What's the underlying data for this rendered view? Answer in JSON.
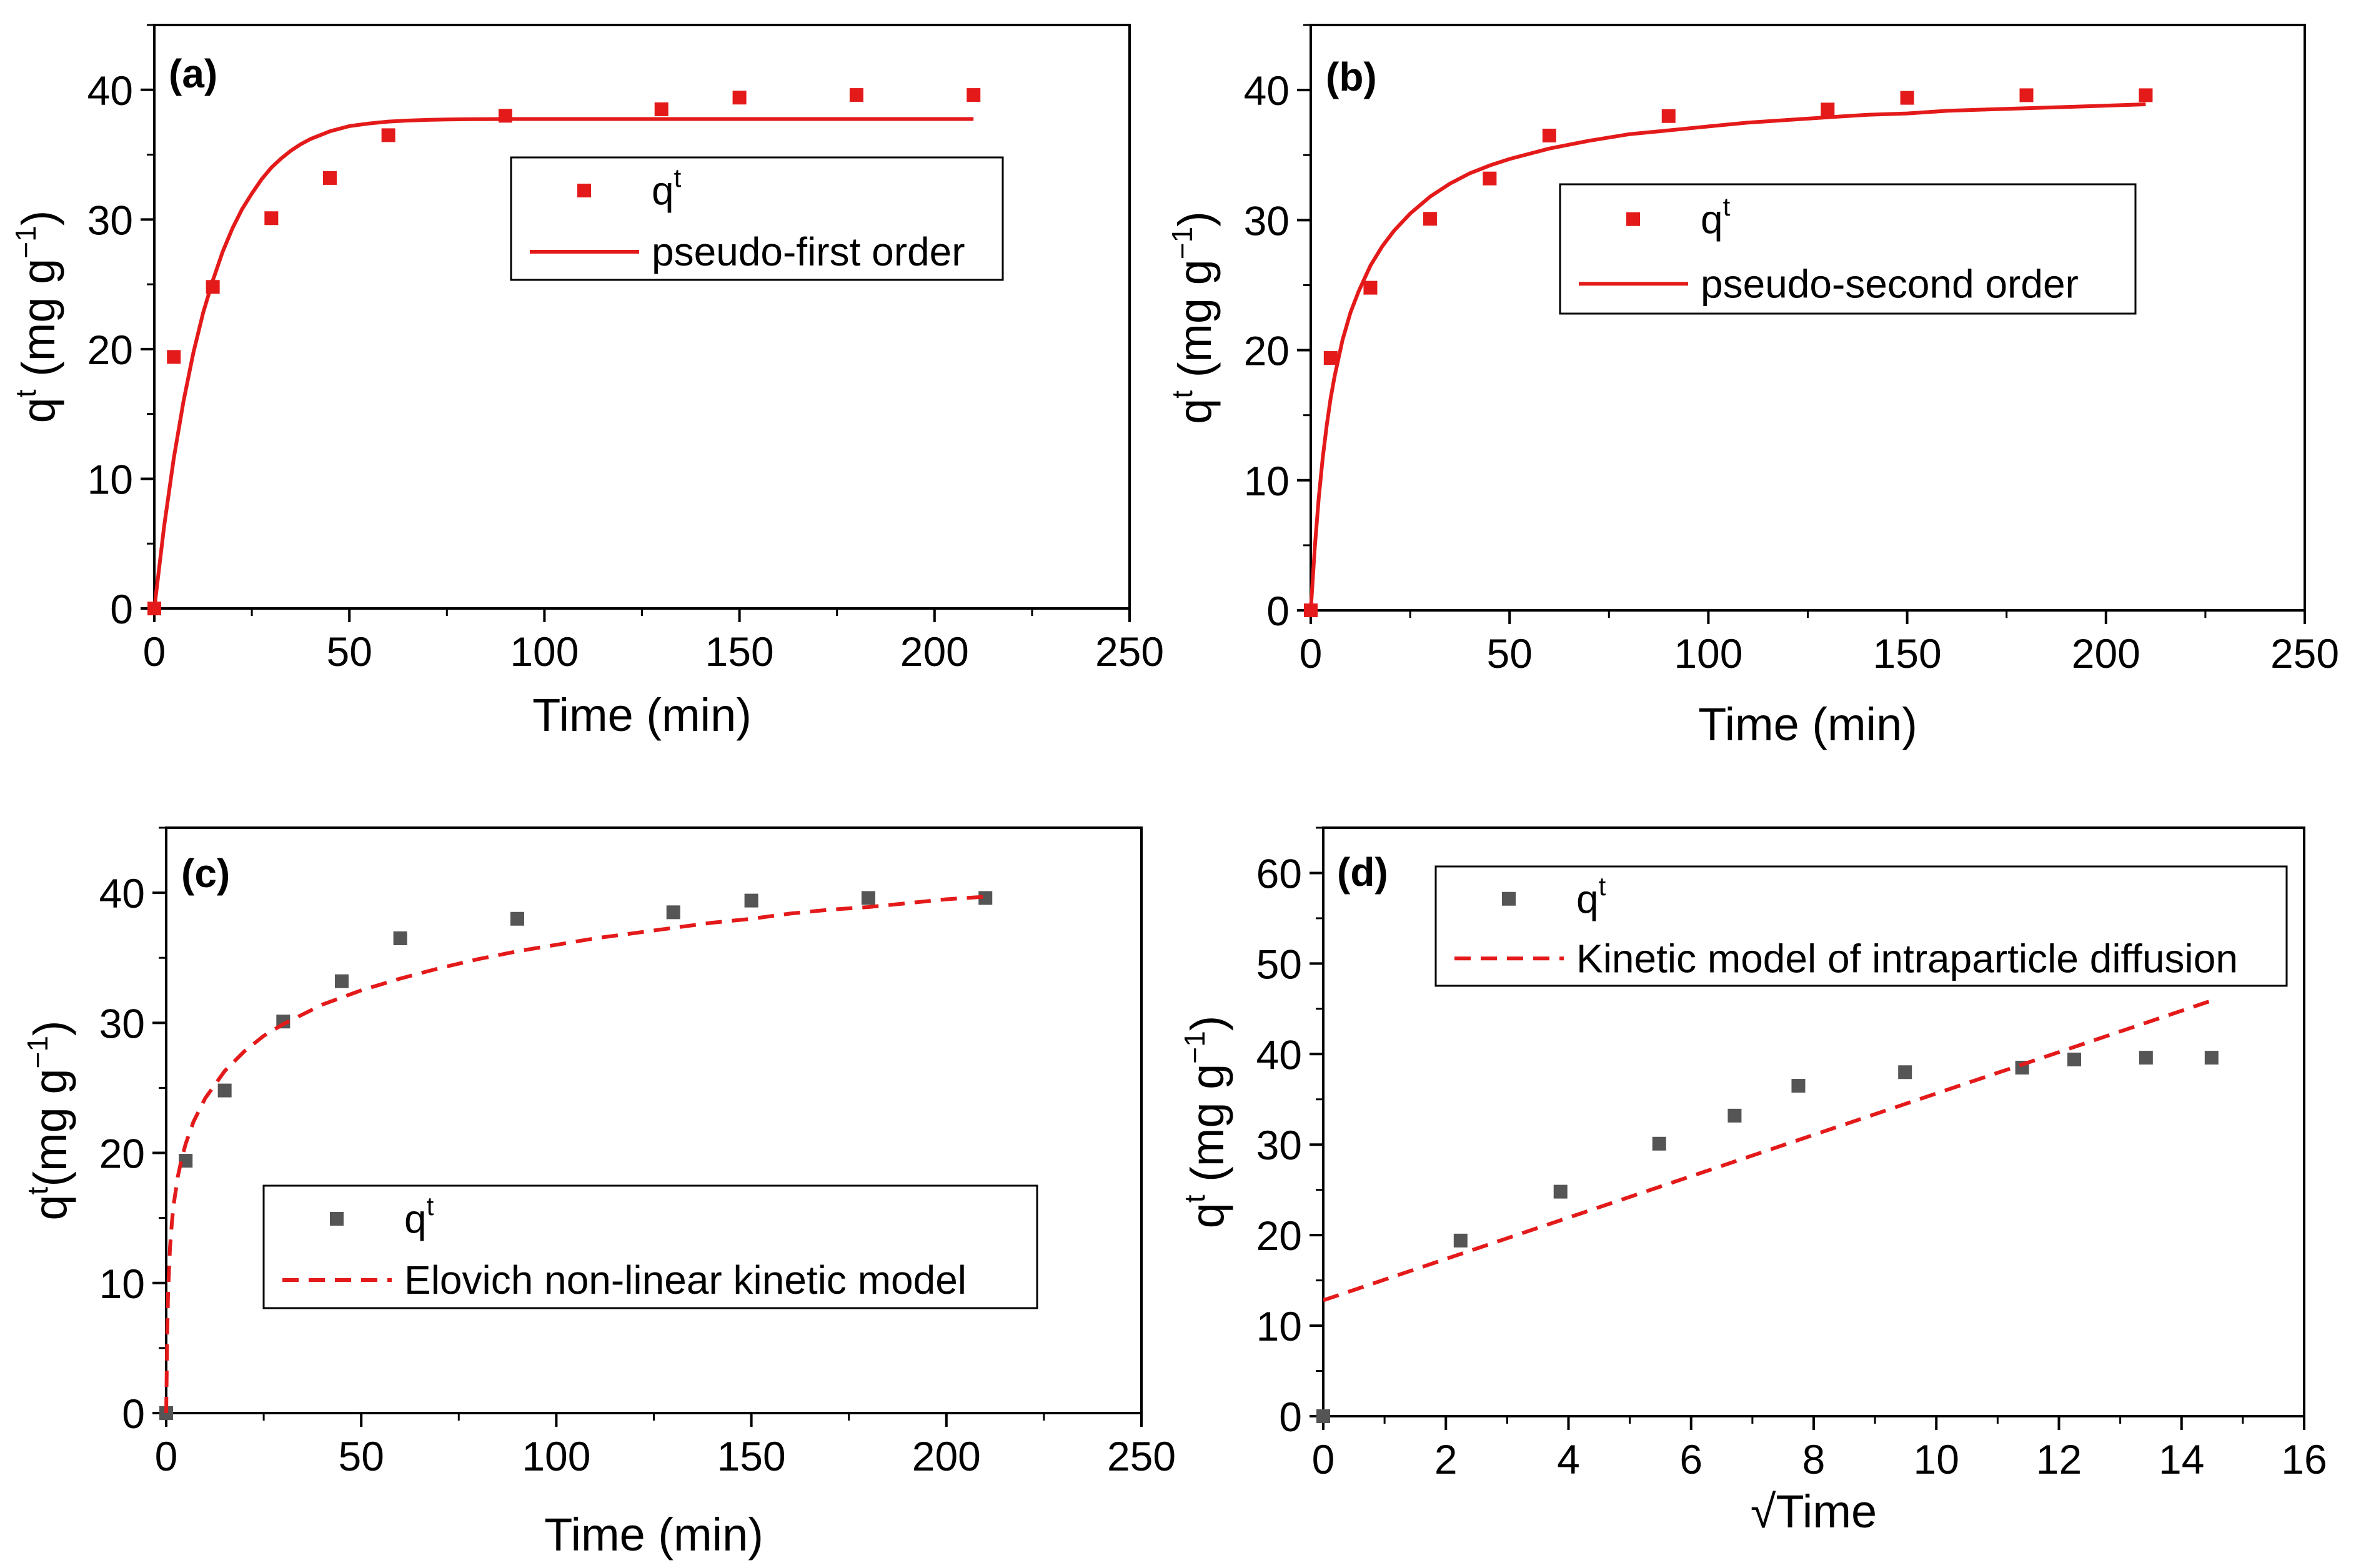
{
  "chart_data": [
    {
      "type": "scatter",
      "panel_label": "(a)",
      "xlabel": "Time (min)",
      "ylabel_main": "q",
      "ylabel_sup": "t",
      "ylabel_rest": " (mg g",
      "ylabel_exp": "−1",
      "ylabel_close": ")",
      "xlim": [
        0,
        250
      ],
      "ylim": [
        0,
        45
      ],
      "xticks": [
        0,
        50,
        100,
        150,
        200,
        250
      ],
      "yticks": [
        0,
        10,
        20,
        30,
        40
      ],
      "grid": false,
      "legend_position": "upper-center-right",
      "series": [
        {
          "name": "q",
          "name_sup": "t",
          "kind": "points",
          "color": "#e41a1a",
          "x": [
            0,
            5,
            15,
            30,
            45,
            60,
            90,
            130,
            150,
            180,
            210
          ],
          "y": [
            0,
            19.4,
            24.8,
            30.1,
            33.2,
            36.5,
            38.0,
            38.5,
            39.4,
            39.6,
            39.6
          ]
        },
        {
          "name": "pseudo-first order",
          "kind": "line",
          "color": "#e41a1a",
          "dash": "solid",
          "x": [
            0,
            2.5,
            5,
            7.5,
            10,
            12.5,
            15,
            17.5,
            20,
            22.5,
            25,
            27.5,
            30,
            32.5,
            35,
            37.5,
            40,
            42.5,
            45,
            50,
            55,
            60,
            65,
            70,
            75,
            80,
            85,
            90,
            95,
            100,
            110,
            120,
            130,
            140,
            150,
            160,
            170,
            180,
            190,
            200,
            210
          ],
          "y": [
            0,
            6.3,
            11.6,
            16.0,
            19.7,
            22.8,
            25.3,
            27.5,
            29.3,
            30.8,
            32.0,
            33.1,
            34.0,
            34.7,
            35.3,
            35.8,
            36.2,
            36.5,
            36.8,
            37.2,
            37.4,
            37.55,
            37.63,
            37.68,
            37.71,
            37.73,
            37.74,
            37.75,
            37.75,
            37.75,
            37.75,
            37.75,
            37.75,
            37.75,
            37.75,
            37.75,
            37.75,
            37.75,
            37.75,
            37.75,
            37.75
          ]
        }
      ]
    },
    {
      "type": "scatter",
      "panel_label": "(b)",
      "xlabel": "Time (min)",
      "ylabel_main": "q",
      "ylabel_sup": "t",
      "ylabel_rest": " (mg g",
      "ylabel_exp": "−1",
      "ylabel_close": ")",
      "xlim": [
        0,
        250
      ],
      "ylim": [
        0,
        45
      ],
      "xticks": [
        0,
        50,
        100,
        150,
        200,
        250
      ],
      "yticks": [
        0,
        10,
        20,
        30,
        40
      ],
      "grid": false,
      "legend_position": "middle-right",
      "series": [
        {
          "name": "q",
          "name_sup": "t",
          "kind": "points",
          "color": "#e41a1a",
          "x": [
            0,
            5,
            15,
            30,
            45,
            60,
            90,
            130,
            150,
            180,
            210
          ],
          "y": [
            0,
            19.4,
            24.8,
            30.1,
            33.2,
            36.5,
            38.0,
            38.5,
            39.4,
            39.6,
            39.6
          ]
        },
        {
          "name": "pseudo-second order",
          "kind": "line",
          "color": "#e41a1a",
          "dash": "solid",
          "x": [
            0,
            1,
            2,
            3,
            4,
            5,
            6,
            8,
            10,
            12,
            15,
            18,
            21,
            25,
            30,
            35,
            40,
            45,
            50,
            60,
            70,
            80,
            90,
            100,
            110,
            120,
            130,
            140,
            150,
            160,
            170,
            180,
            190,
            200,
            210
          ],
          "y": [
            0,
            4.8,
            8.6,
            11.7,
            14.2,
            16.3,
            18.0,
            20.8,
            22.9,
            24.5,
            26.5,
            28.0,
            29.2,
            30.5,
            31.8,
            32.8,
            33.6,
            34.2,
            34.7,
            35.5,
            36.1,
            36.6,
            36.9,
            37.2,
            37.5,
            37.7,
            37.9,
            38.1,
            38.2,
            38.4,
            38.5,
            38.6,
            38.7,
            38.8,
            38.9
          ]
        }
      ]
    },
    {
      "type": "scatter",
      "panel_label": "(c)",
      "xlabel": "Time (min)",
      "ylabel_main": "q",
      "ylabel_sup": "t",
      "ylabel_rest": "(mg g",
      "ylabel_exp": "−1",
      "ylabel_close": ")",
      "xlim": [
        0,
        250
      ],
      "ylim": [
        0,
        45
      ],
      "xticks": [
        0,
        50,
        100,
        150,
        200,
        250
      ],
      "yticks": [
        0,
        10,
        20,
        30,
        40
      ],
      "grid": false,
      "legend_position": "lower-right",
      "series": [
        {
          "name": "q",
          "name_sup": "t",
          "kind": "points",
          "color": "#555555",
          "x": [
            0,
            5,
            15,
            30,
            45,
            60,
            90,
            130,
            150,
            180,
            210
          ],
          "y": [
            0,
            19.4,
            24.8,
            30.1,
            33.2,
            36.5,
            38.0,
            38.5,
            39.4,
            39.6,
            39.6
          ]
        },
        {
          "name": "Elovich non-linear kinetic model",
          "kind": "line",
          "color": "#e41a1a",
          "dash": "dashed",
          "x": [
            0,
            0.25,
            0.5,
            1,
            1.5,
            2,
            3,
            4,
            5,
            7,
            10,
            15,
            20,
            25,
            30,
            40,
            50,
            60,
            70,
            80,
            90,
            100,
            110,
            120,
            130,
            140,
            150,
            160,
            170,
            180,
            190,
            200,
            210
          ],
          "y": [
            0,
            6.0,
            9.4,
            12.8,
            14.8,
            16.2,
            18.2,
            19.6,
            20.7,
            22.4,
            24.2,
            26.3,
            27.8,
            29.0,
            29.9,
            31.4,
            32.5,
            33.4,
            34.2,
            34.9,
            35.5,
            36.0,
            36.5,
            36.9,
            37.3,
            37.7,
            38.0,
            38.4,
            38.7,
            38.9,
            39.2,
            39.5,
            39.7
          ]
        }
      ]
    },
    {
      "type": "scatter",
      "panel_label": "(d)",
      "xlabel": "√Time",
      "ylabel_main": "q",
      "ylabel_sup": "t",
      "ylabel_rest": " (mg g",
      "ylabel_exp": "−1",
      "ylabel_close": ")",
      "xlim": [
        0,
        16
      ],
      "ylim": [
        0,
        65
      ],
      "xticks": [
        0,
        2,
        4,
        6,
        8,
        10,
        12,
        14,
        16
      ],
      "yticks": [
        0,
        10,
        20,
        30,
        40,
        50,
        60
      ],
      "grid": false,
      "legend_position": "top-right",
      "series": [
        {
          "name": "q",
          "name_sup": "t",
          "kind": "points",
          "color": "#555555",
          "x": [
            0,
            2.24,
            3.87,
            5.48,
            6.71,
            7.75,
            9.49,
            11.4,
            12.25,
            13.42,
            14.49
          ],
          "y": [
            0,
            19.4,
            24.8,
            30.1,
            33.2,
            36.5,
            38.0,
            38.5,
            39.4,
            39.6,
            39.6
          ]
        },
        {
          "name": "Kinetic model of intraparticle diffusion",
          "kind": "line",
          "color": "#e41a1a",
          "dash": "dashed",
          "x": [
            0,
            14.49
          ],
          "y": [
            12.8,
            45.9
          ]
        }
      ]
    }
  ]
}
